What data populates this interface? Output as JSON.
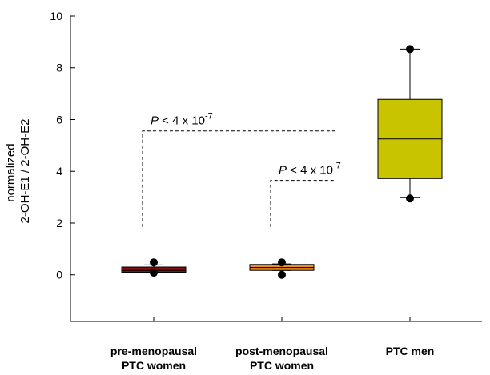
{
  "chart_data": {
    "type": "box",
    "ylabel": [
      "normalized",
      "2-OH-E1 / 2-OH-E2"
    ],
    "ylim": [
      -1.8,
      10
    ],
    "yticks": [
      0,
      2,
      4,
      6,
      8,
      10
    ],
    "grid": false,
    "categories": [
      [
        "pre-menopausal",
        "PTC women"
      ],
      [
        "post-menopausal",
        "PTC women"
      ],
      [
        "PTC men"
      ]
    ],
    "boxes": [
      {
        "q1": 0.1,
        "median": 0.17,
        "q3": 0.3,
        "whisker_low": 0.1,
        "whisker_high": 0.38,
        "outliers": [
          0.08,
          0.48
        ],
        "color": "#8b0d0d"
      },
      {
        "q1": 0.17,
        "median": 0.28,
        "q3": 0.4,
        "whisker_low": 0.17,
        "whisker_high": 0.42,
        "outliers": [
          0.0,
          0.48
        ],
        "color": "#f08c1e"
      },
      {
        "q1": 3.72,
        "median": 5.25,
        "q3": 6.78,
        "whisker_low": 2.98,
        "whisker_high": 8.72,
        "outliers": [
          2.95,
          8.72
        ],
        "color": "#c8c400"
      }
    ],
    "annotations": [
      {
        "label": "P < 4 x 10",
        "exp": "-7",
        "from": 0,
        "to": 2,
        "y": 5.56,
        "from_y": 1.85
      },
      {
        "label": "P < 4 x 10",
        "exp": "-7",
        "from": 1,
        "to": 2,
        "y": 3.65,
        "from_y": 1.85
      }
    ]
  }
}
